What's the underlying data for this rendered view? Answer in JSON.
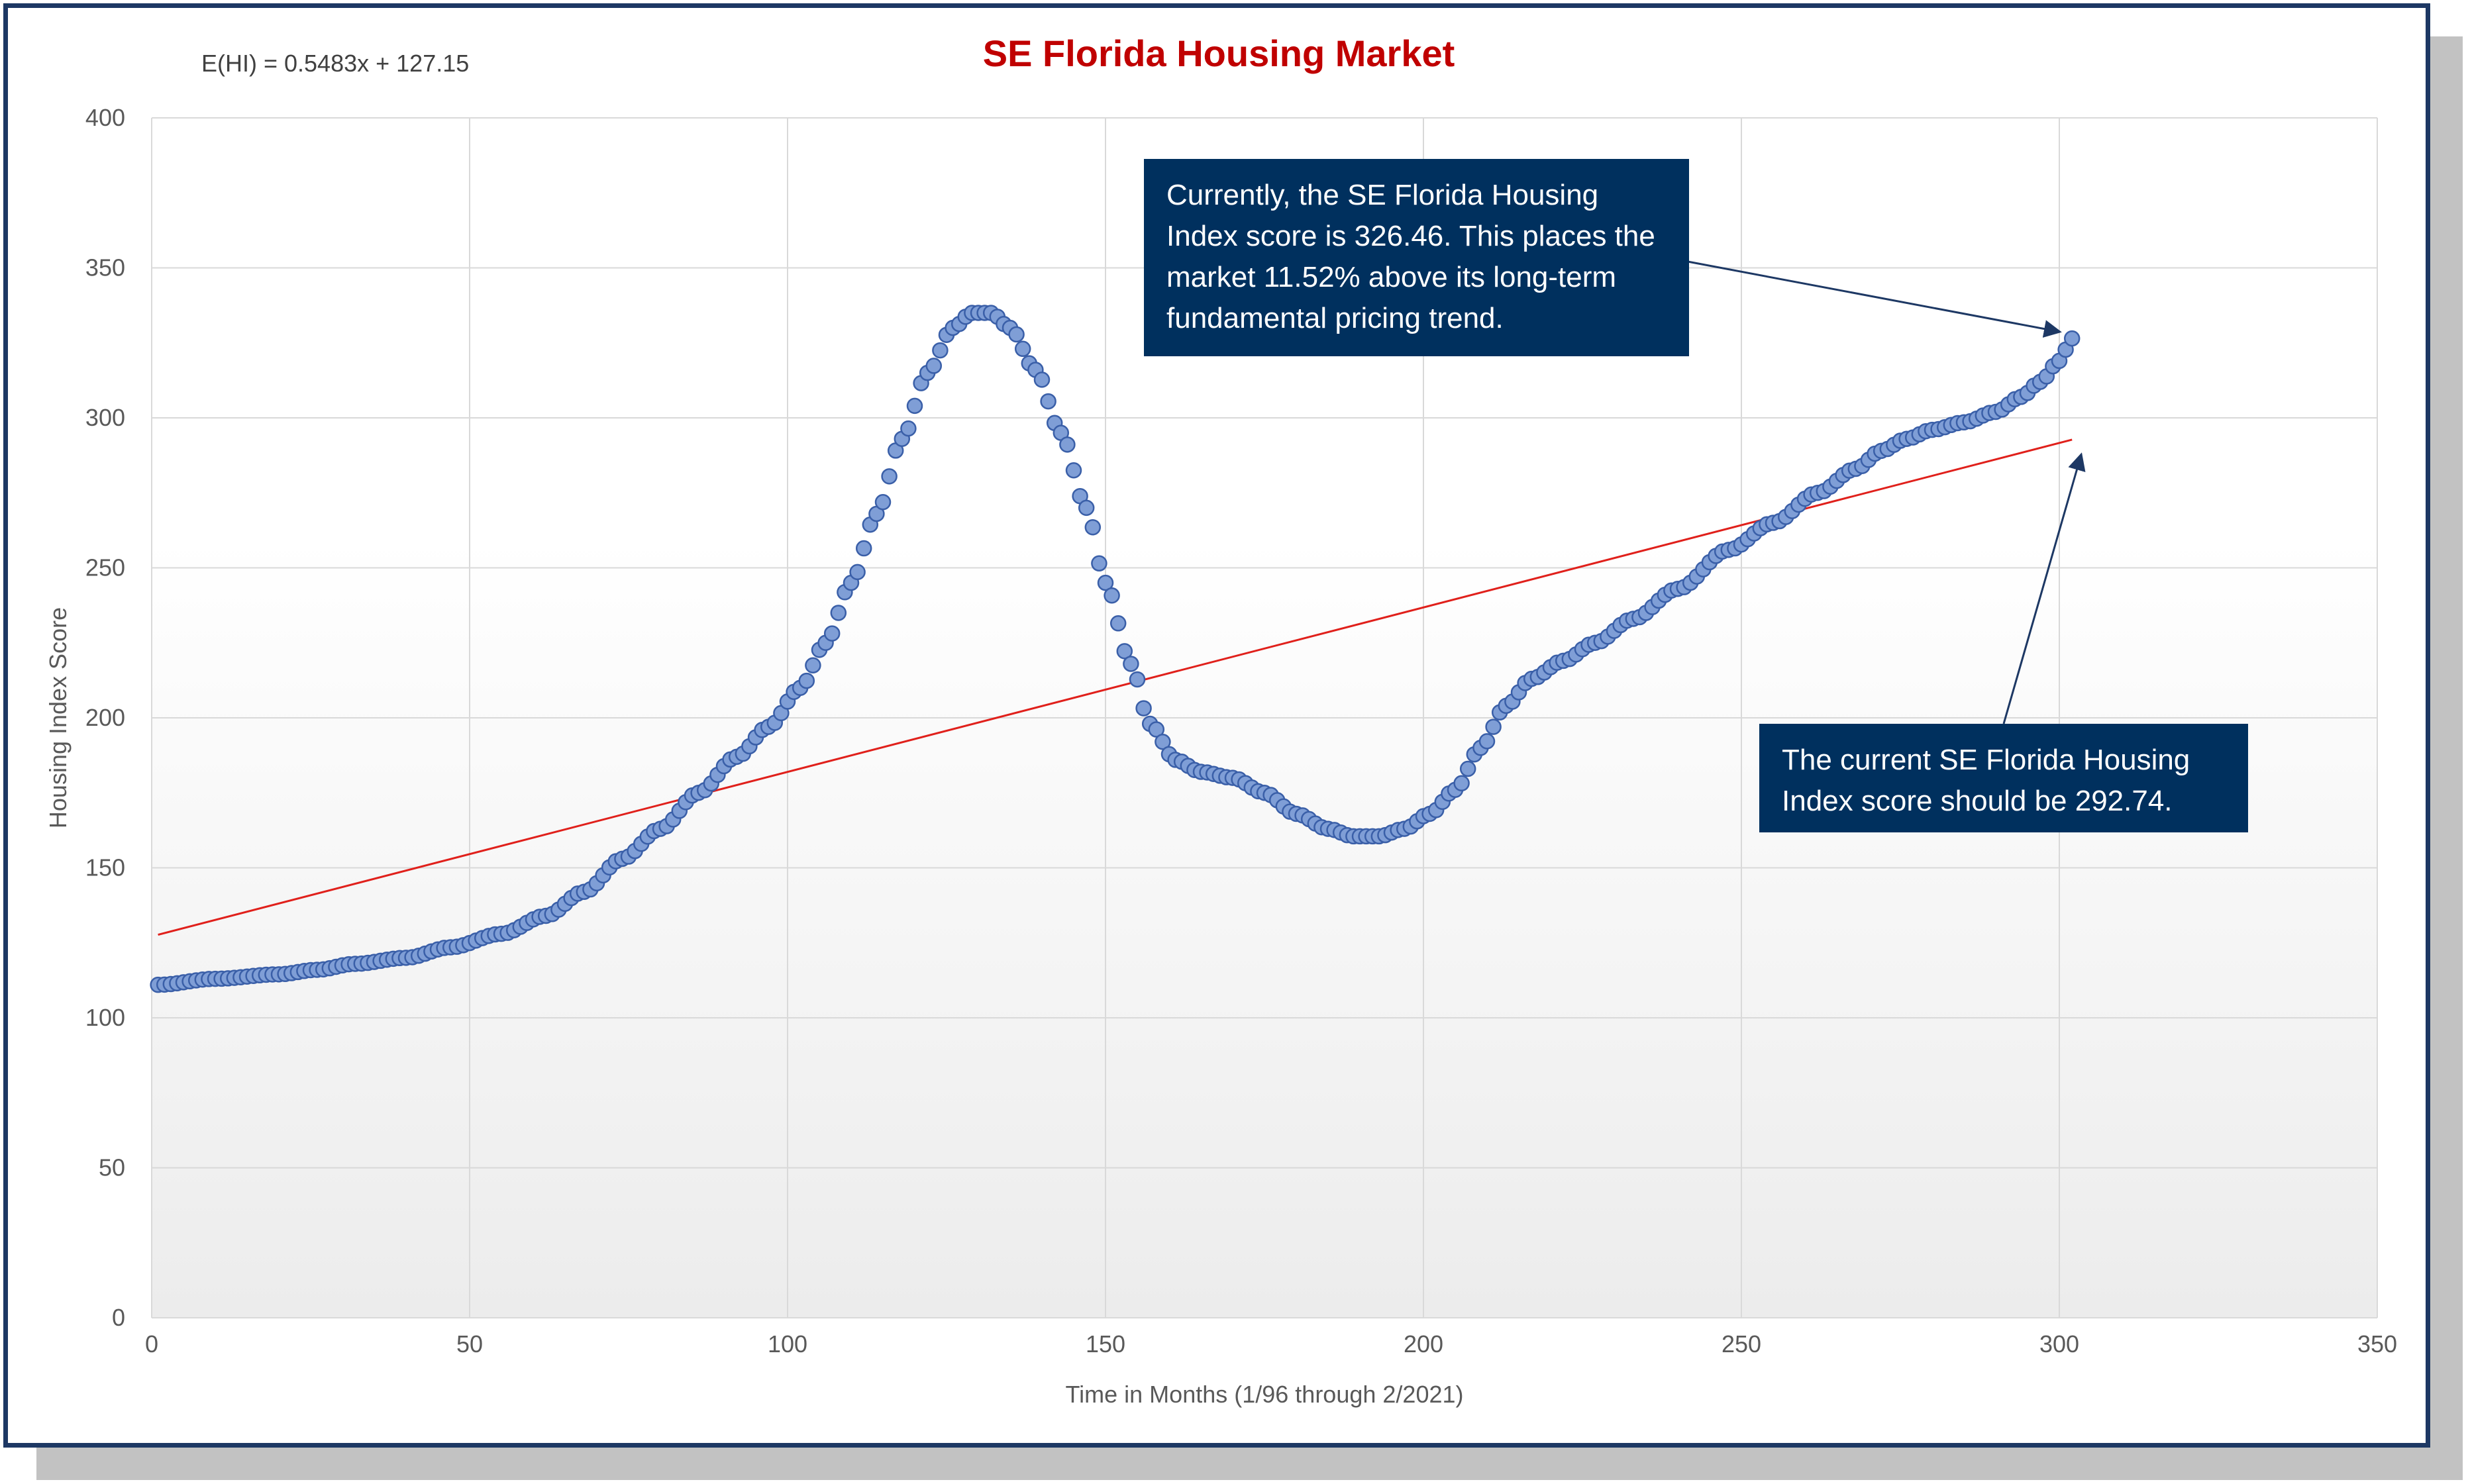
{
  "chart_data": {
    "type": "scatter",
    "title": "SE Florida Housing Market",
    "xlabel": "Time in Months (1/96 through 2/2021)",
    "ylabel": "Housing Index Score",
    "xlim": [
      0,
      350
    ],
    "ylim": [
      0,
      400
    ],
    "x_ticks": [
      0,
      50,
      100,
      150,
      200,
      250,
      300,
      350
    ],
    "y_ticks": [
      0,
      50,
      100,
      150,
      200,
      250,
      300,
      350,
      400
    ],
    "grid": true,
    "trendline_equation": "E(HI) = 0.5483x + 127.15",
    "trendline": {
      "slope": 0.5483,
      "intercept": 127.15,
      "x_range": [
        1,
        302
      ]
    },
    "series": [
      {
        "marker_color": "#7f9ed6",
        "key_points": [
          [
            1,
            111
          ],
          [
            10,
            113
          ],
          [
            20,
            114.5
          ],
          [
            26,
            116
          ],
          [
            32,
            118
          ],
          [
            40,
            120
          ],
          [
            47,
            123.5
          ],
          [
            55,
            128
          ],
          [
            62,
            134
          ],
          [
            68,
            142
          ],
          [
            74,
            153
          ],
          [
            80,
            163
          ],
          [
            86,
            175
          ],
          [
            92,
            187
          ],
          [
            97,
            197
          ],
          [
            102,
            210
          ],
          [
            106,
            225
          ],
          [
            110,
            245
          ],
          [
            114,
            268
          ],
          [
            118,
            293
          ],
          [
            122,
            315
          ],
          [
            126,
            330
          ],
          [
            129,
            335
          ],
          [
            132,
            335
          ],
          [
            135,
            330
          ],
          [
            139,
            316
          ],
          [
            143,
            295
          ],
          [
            147,
            270
          ],
          [
            150,
            245
          ],
          [
            154,
            218
          ],
          [
            157,
            198
          ],
          [
            161,
            186
          ],
          [
            165,
            182
          ],
          [
            170,
            180
          ],
          [
            175,
            175
          ],
          [
            180,
            168
          ],
          [
            185,
            163
          ],
          [
            189,
            160.5
          ],
          [
            193,
            160.5
          ],
          [
            197,
            163
          ],
          [
            201,
            168
          ],
          [
            205,
            176
          ],
          [
            209,
            190
          ],
          [
            213,
            204
          ],
          [
            217,
            213
          ],
          [
            222,
            219
          ],
          [
            227,
            225
          ],
          [
            233,
            233
          ],
          [
            240,
            243
          ],
          [
            248,
            256
          ],
          [
            255,
            265
          ],
          [
            262,
            275
          ],
          [
            268,
            283
          ],
          [
            272,
            289
          ],
          [
            276,
            293
          ],
          [
            280,
            296
          ],
          [
            285,
            298.5
          ],
          [
            290,
            302
          ],
          [
            294,
            307
          ],
          [
            297,
            312
          ],
          [
            300,
            319
          ],
          [
            302,
            326.46
          ]
        ]
      }
    ],
    "annotations": [
      {
        "text": "Currently, the SE Florida Housing Index score is 326.46. This places the market 11.52% above its long-term fundamental pricing trend.",
        "points_to": [
          302,
          326.46
        ]
      },
      {
        "text": "The current SE Florida Housing Index score should be 292.74.",
        "points_to": [
          302,
          292.74
        ]
      }
    ]
  },
  "callouts": {
    "top_lines": [
      "Currently, the SE Florida Housing",
      "Index score is 326.46. This places the",
      "market 11.52% above its long-term",
      "fundamental pricing trend."
    ],
    "bottom_lines": [
      "The current SE Florida Housing",
      "Index score should be 292.74."
    ]
  },
  "colors": {
    "frame_border": "#1d3864",
    "title": "#c00000",
    "trendline": "#e0201b",
    "marker_fill": "#7f9ed6",
    "marker_stroke": "#3a5fa8",
    "callout_bg": "#00305e",
    "grid": "#d9d9d9"
  }
}
